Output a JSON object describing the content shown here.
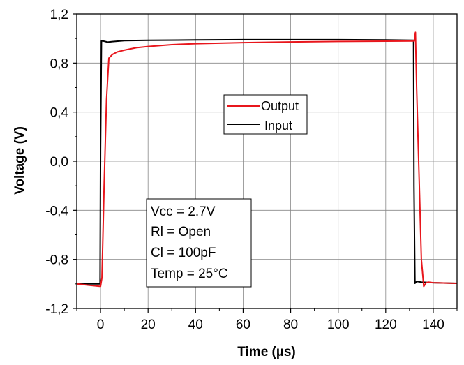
{
  "chart_data": {
    "type": "line",
    "title": "",
    "xlabel": "Time (µs)",
    "ylabel": "Voltage (V)",
    "xlim": [
      -10,
      150
    ],
    "ylim": [
      -1.2,
      1.2
    ],
    "xticks": [
      0,
      20,
      40,
      60,
      80,
      100,
      120,
      140
    ],
    "xtick_labels": [
      "0",
      "20",
      "40",
      "60",
      "80",
      "100",
      "120",
      "140"
    ],
    "yticks": [
      -1.2,
      -0.8,
      -0.4,
      0.0,
      0.4,
      0.8,
      1.2
    ],
    "ytick_labels": [
      "-1,2",
      "-0,8",
      "-0,4",
      "0,0",
      "0,4",
      "0,8",
      "1,2"
    ],
    "grid": true,
    "legend": {
      "placement": "center",
      "entries": [
        "Output",
        "Input"
      ]
    },
    "annotation": [
      "Vcc = 2.7V",
      "Rl = Open",
      "Cl = 100pF",
      "Temp = 25°C"
    ],
    "series": [
      {
        "name": "Output",
        "color": "#e8161c",
        "x": [
          -10,
          0,
          0.6,
          1.5,
          2.5,
          3.5,
          5,
          7,
          10,
          15,
          20,
          30,
          40,
          60,
          80,
          100,
          120,
          132,
          132.5,
          133,
          134,
          135,
          136,
          137,
          138,
          140,
          150
        ],
        "y": [
          -1.0,
          -1.02,
          -0.95,
          -0.2,
          0.5,
          0.84,
          0.87,
          0.89,
          0.905,
          0.925,
          0.935,
          0.95,
          0.958,
          0.966,
          0.972,
          0.976,
          0.978,
          0.98,
          1.05,
          0.6,
          -0.1,
          -0.8,
          -1.02,
          -0.99,
          -0.985,
          -0.99,
          -0.995
        ]
      },
      {
        "name": "Input",
        "color": "#000000",
        "x": [
          -10,
          -0.2,
          0,
          0.4,
          1,
          3,
          5,
          10,
          20,
          40,
          60,
          80,
          100,
          120,
          131.7,
          131.9,
          132.3,
          133,
          135,
          140,
          150
        ],
        "y": [
          -1.0,
          -1.0,
          0.1,
          0.98,
          0.98,
          0.97,
          0.975,
          0.982,
          0.985,
          0.988,
          0.99,
          0.99,
          0.99,
          0.988,
          0.985,
          -0.2,
          -0.995,
          -0.98,
          -0.985,
          -0.99,
          -0.995
        ]
      }
    ]
  }
}
